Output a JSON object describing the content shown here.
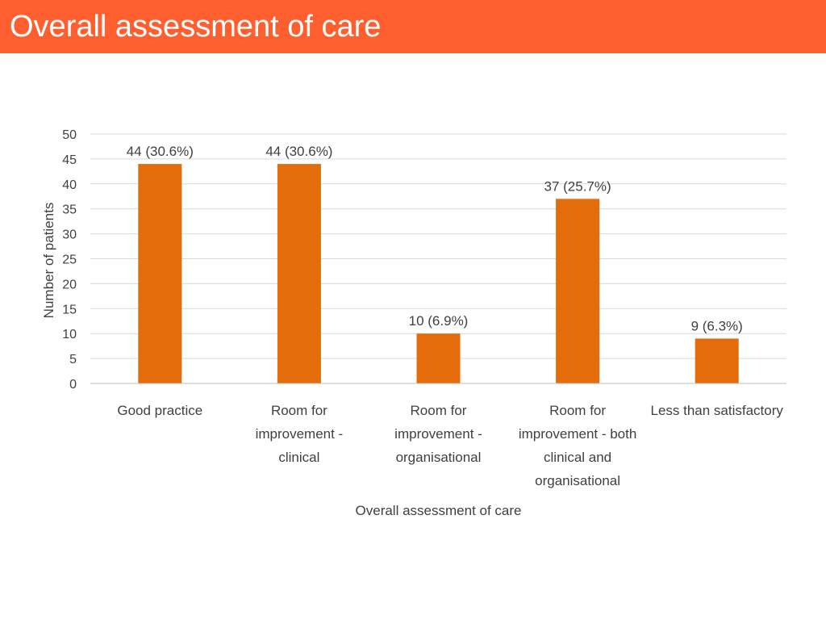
{
  "slide": {
    "title": "Overall assessment of care",
    "header_color": "#FF5F2E"
  },
  "chart_data": {
    "type": "bar",
    "categories": [
      [
        "Good practice"
      ],
      [
        "Room for",
        "improvement -",
        "clinical"
      ],
      [
        "Room for",
        "improvement -",
        "organisational"
      ],
      [
        "Room for",
        "improvement - both",
        "clinical and",
        "organisational"
      ],
      [
        "Less than satisfactory"
      ]
    ],
    "values": [
      44,
      44,
      10,
      37,
      9
    ],
    "data_labels": [
      "44 (30.6%)",
      "44 (30.6%)",
      "10 (6.9%)",
      "37 (25.7%)",
      "9 (6.3%)"
    ],
    "xlabel": "Overall assessment of care",
    "ylabel": "Number of patients",
    "ylim": [
      0,
      50
    ],
    "yticks": [
      0,
      5,
      10,
      15,
      20,
      25,
      30,
      35,
      40,
      45,
      50
    ],
    "grid": true,
    "bar_color": "#E46C0A",
    "legend": "none"
  }
}
